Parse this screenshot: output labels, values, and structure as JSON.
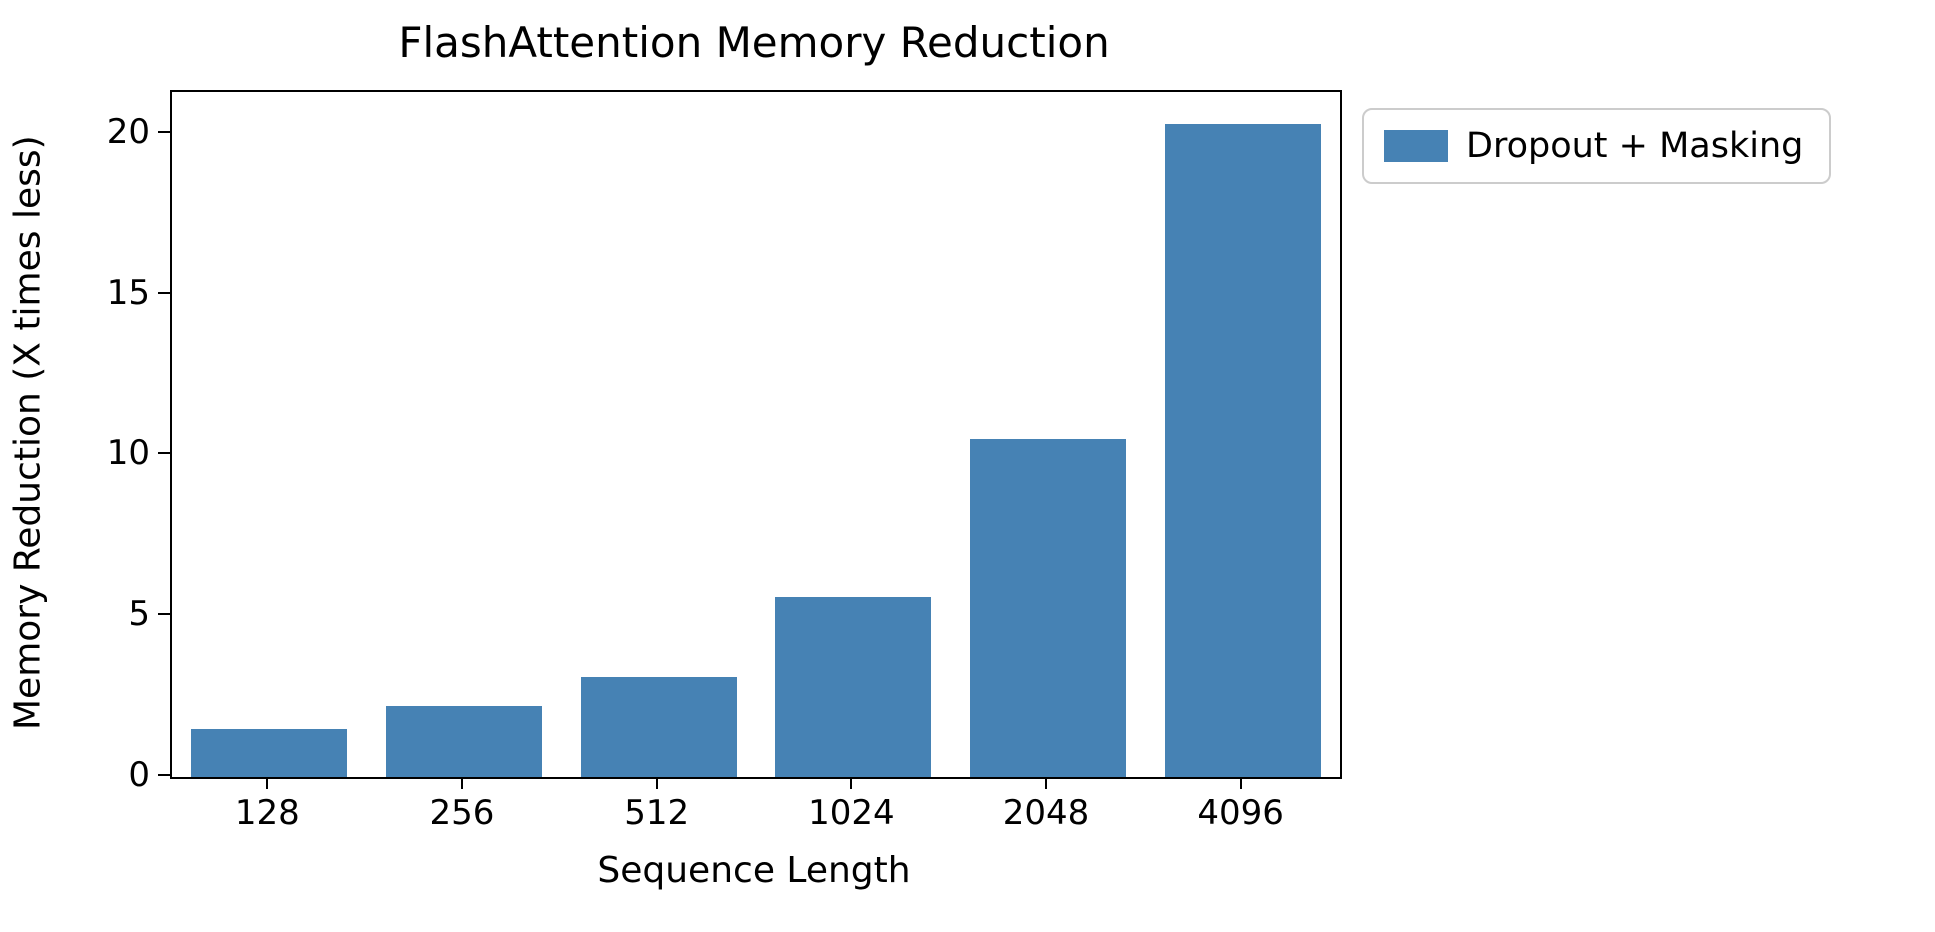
{
  "chart_data": {
    "type": "bar",
    "title": "FlashAttention Memory Reduction",
    "xlabel": "Sequence Length",
    "ylabel": "Memory Reduction (X times less)",
    "categories": [
      "128",
      "256",
      "512",
      "1024",
      "2048",
      "4096"
    ],
    "values": [
      1.5,
      2.2,
      3.1,
      5.6,
      10.5,
      20.3
    ],
    "yticks": [
      0,
      5,
      10,
      15,
      20
    ],
    "ylim": [
      0,
      21.3
    ],
    "grid": false,
    "bar_color": "#4682b4",
    "legend": {
      "position": "outside-upper-right",
      "entries": [
        {
          "label": "Dropout + Masking",
          "color": "#4682b4"
        }
      ]
    }
  }
}
